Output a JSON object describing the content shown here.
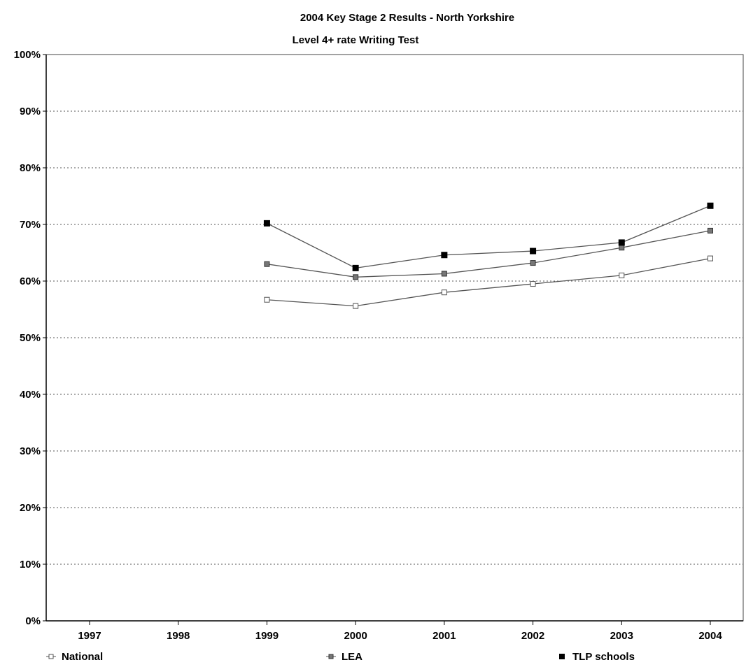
{
  "chart_data": {
    "type": "line",
    "title": "2004 Key Stage 2 Results - North Yorkshire",
    "subtitle": "Level 4+ rate Writing Test",
    "categories": [
      "1997",
      "1998",
      "1999",
      "2000",
      "2001",
      "2002",
      "2003",
      "2004"
    ],
    "ylim": [
      0,
      100
    ],
    "yticks": [
      "0%",
      "10%",
      "20%",
      "30%",
      "40%",
      "50%",
      "60%",
      "70%",
      "80%",
      "90%",
      "100%"
    ],
    "grid": true,
    "legend_position": "bottom",
    "series": [
      {
        "name": "National",
        "marker": "hollow-square",
        "values": [
          null,
          null,
          56.7,
          55.6,
          58.0,
          59.5,
          61.0,
          64.0
        ]
      },
      {
        "name": "LEA",
        "marker": "gray-square",
        "values": [
          null,
          null,
          63.0,
          60.7,
          61.3,
          63.2,
          65.9,
          68.9
        ]
      },
      {
        "name": "TLP schools",
        "marker": "black-square",
        "values": [
          null,
          null,
          70.2,
          62.3,
          64.6,
          65.3,
          66.8,
          73.3
        ]
      }
    ],
    "colors": {
      "line": "#555555",
      "hollow": "#ffffff",
      "gray": "#777777",
      "black": "#000000",
      "grid": "#555555"
    }
  }
}
